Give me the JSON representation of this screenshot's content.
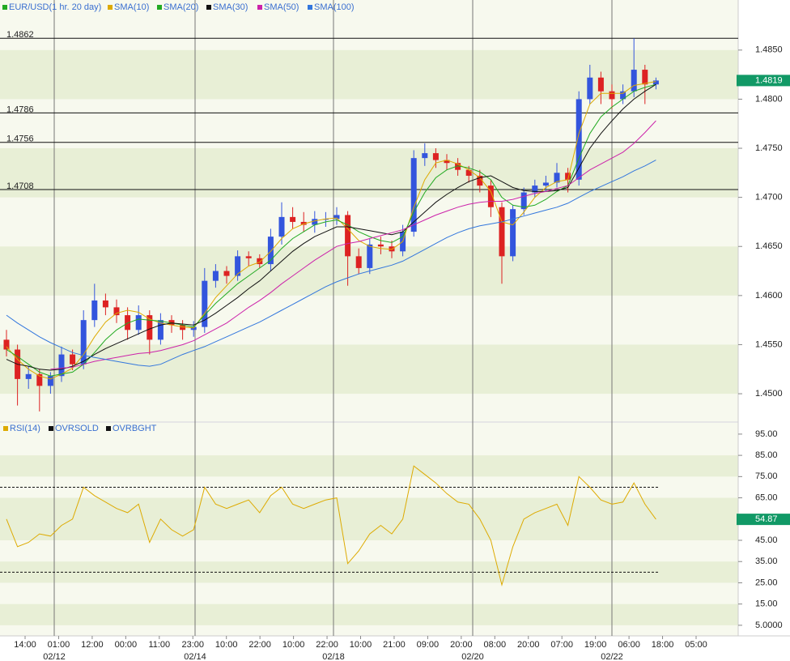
{
  "chart_data": [
    {
      "type": "candlestick",
      "title": "EUR/USD(1 hr. 20 day)",
      "title_color": "#22aa22",
      "up_color": "#3355dd",
      "down_color": "#dd2222",
      "candles": {
        "open": [
          1.4555,
          1.4545,
          1.4515,
          1.452,
          1.4508,
          1.4518,
          1.454,
          1.453,
          1.4575,
          1.4595,
          1.4588,
          1.458,
          1.4565,
          1.458,
          1.4555,
          1.4575,
          1.457,
          1.4565,
          1.4568,
          1.4615,
          1.4625,
          1.462,
          1.464,
          1.4638,
          1.4632,
          1.466,
          1.468,
          1.4675,
          1.4672,
          1.4678,
          1.4678,
          1.4682,
          1.464,
          1.4628,
          1.4652,
          1.465,
          1.4645,
          1.4665,
          1.474,
          1.4745,
          1.4738,
          1.4735,
          1.4728,
          1.4722,
          1.4712,
          1.469,
          1.464,
          1.4688,
          1.4705,
          1.4712,
          1.4715,
          1.4725,
          1.4718,
          1.48,
          1.4822,
          1.4808,
          1.48,
          1.4808,
          1.483,
          1.4815
        ],
        "high": [
          1.4565,
          1.455,
          1.4528,
          1.4525,
          1.4522,
          1.4548,
          1.4545,
          1.4585,
          1.4612,
          1.4602,
          1.4596,
          1.4588,
          1.459,
          1.4585,
          1.4582,
          1.458,
          1.4575,
          1.4574,
          1.4628,
          1.4632,
          1.463,
          1.4646,
          1.4645,
          1.4642,
          1.4668,
          1.4695,
          1.469,
          1.4685,
          1.4686,
          1.4685,
          1.469,
          1.4686,
          1.4648,
          1.4658,
          1.466,
          1.4656,
          1.4672,
          1.4748,
          1.4755,
          1.475,
          1.4744,
          1.474,
          1.4732,
          1.4728,
          1.4718,
          1.4695,
          1.4692,
          1.471,
          1.4718,
          1.4722,
          1.4735,
          1.473,
          1.4808,
          1.4835,
          1.4828,
          1.4815,
          1.4815,
          1.4862,
          1.4835,
          1.4822
        ],
        "low": [
          1.4538,
          1.4488,
          1.4505,
          1.4482,
          1.45,
          1.4512,
          1.4524,
          1.4525,
          1.4568,
          1.458,
          1.4572,
          1.4555,
          1.456,
          1.454,
          1.455,
          1.4562,
          1.4555,
          1.4558,
          1.4562,
          1.4608,
          1.4612,
          1.4615,
          1.463,
          1.4628,
          1.4625,
          1.4652,
          1.4668,
          1.4665,
          1.4664,
          1.467,
          1.4672,
          1.461,
          1.4622,
          1.4622,
          1.4642,
          1.4638,
          1.464,
          1.466,
          1.4732,
          1.473,
          1.4728,
          1.4722,
          1.4715,
          1.4705,
          1.468,
          1.4612,
          1.4635,
          1.4682,
          1.47,
          1.4706,
          1.471,
          1.4705,
          1.4712,
          1.4795,
          1.4795,
          1.479,
          1.4795,
          1.4802,
          1.4795,
          1.481
        ],
        "close": [
          1.4545,
          1.4515,
          1.452,
          1.4508,
          1.4518,
          1.454,
          1.453,
          1.4575,
          1.4595,
          1.4588,
          1.458,
          1.4565,
          1.458,
          1.4555,
          1.4575,
          1.457,
          1.4565,
          1.4568,
          1.4615,
          1.4625,
          1.462,
          1.464,
          1.4638,
          1.4632,
          1.466,
          1.468,
          1.4675,
          1.4672,
          1.4678,
          1.4678,
          1.4682,
          1.464,
          1.4628,
          1.4652,
          1.465,
          1.4645,
          1.4665,
          1.474,
          1.4745,
          1.4738,
          1.4735,
          1.4728,
          1.4722,
          1.4712,
          1.469,
          1.464,
          1.4688,
          1.4705,
          1.4712,
          1.4715,
          1.4725,
          1.4718,
          1.48,
          1.4822,
          1.4808,
          1.48,
          1.4808,
          1.483,
          1.4815,
          1.4819
        ]
      },
      "series": [
        {
          "name": "SMA(10)",
          "color": "#ddaa00",
          "values": [
            1.4548,
            1.4535,
            1.4525,
            1.4518,
            1.4515,
            1.452,
            1.4526,
            1.454,
            1.4558,
            1.4573,
            1.4582,
            1.4585,
            1.4583,
            1.4576,
            1.4572,
            1.457,
            1.4568,
            1.4567,
            1.4582,
            1.4598,
            1.461,
            1.4622,
            1.463,
            1.4634,
            1.4645,
            1.4658,
            1.4668,
            1.4673,
            1.4676,
            1.4678,
            1.4679,
            1.4668,
            1.4656,
            1.465,
            1.4648,
            1.4647,
            1.4655,
            1.469,
            1.4718,
            1.4735,
            1.4738,
            1.4734,
            1.4728,
            1.472,
            1.4706,
            1.4675,
            1.4672,
            1.4685,
            1.47,
            1.471,
            1.4716,
            1.4718,
            1.4765,
            1.4795,
            1.4806,
            1.4806,
            1.4806,
            1.4814,
            1.4816,
            1.4818
          ]
        },
        {
          "name": "SMA(20)",
          "color": "#22aa22",
          "values": [
            1.4545,
            1.4538,
            1.453,
            1.4522,
            1.4518,
            1.452,
            1.4522,
            1.453,
            1.4542,
            1.4555,
            1.4565,
            1.4572,
            1.4576,
            1.4575,
            1.4574,
            1.4572,
            1.457,
            1.4568,
            1.458,
            1.4592,
            1.4602,
            1.4612,
            1.462,
            1.4628,
            1.4636,
            1.4648,
            1.4658,
            1.4665,
            1.4672,
            1.4675,
            1.4677,
            1.4672,
            1.4665,
            1.466,
            1.4656,
            1.4654,
            1.466,
            1.4685,
            1.4705,
            1.472,
            1.4728,
            1.4732,
            1.473,
            1.4726,
            1.4718,
            1.47,
            1.4692,
            1.469,
            1.4692,
            1.4698,
            1.4706,
            1.4712,
            1.474,
            1.4765,
            1.4782,
            1.4792,
            1.48,
            1.4808,
            1.4812,
            1.4815
          ]
        },
        {
          "name": "SMA(30)",
          "color": "#111111",
          "values": [
            1.4535,
            1.453,
            1.4528,
            1.4525,
            1.4524,
            1.4525,
            1.4528,
            1.4533,
            1.454,
            1.4546,
            1.4551,
            1.4556,
            1.4561,
            1.4566,
            1.457,
            1.4572,
            1.4571,
            1.457,
            1.4575,
            1.4582,
            1.459,
            1.4598,
            1.4607,
            1.4615,
            1.4625,
            1.4635,
            1.4645,
            1.4653,
            1.466,
            1.4665,
            1.467,
            1.467,
            1.4668,
            1.4666,
            1.4664,
            1.4662,
            1.4665,
            1.4675,
            1.4685,
            1.4695,
            1.4703,
            1.471,
            1.4716,
            1.472,
            1.4722,
            1.4716,
            1.471,
            1.4707,
            1.4706,
            1.4706,
            1.4707,
            1.471,
            1.473,
            1.475,
            1.4765,
            1.4778,
            1.479,
            1.48,
            1.4808,
            1.4815
          ]
        },
        {
          "name": "SMA(50)",
          "color": "#cc22aa",
          "values": [
            null,
            null,
            null,
            null,
            1.4525,
            1.4526,
            1.4527,
            1.453,
            1.4533,
            1.4535,
            1.4537,
            1.4539,
            1.4541,
            1.4542,
            1.4544,
            1.4547,
            1.455,
            1.4554,
            1.456,
            1.4566,
            1.4572,
            1.458,
            1.4588,
            1.4595,
            1.4603,
            1.4612,
            1.462,
            1.4628,
            1.4636,
            1.4643,
            1.465,
            1.4653,
            1.4655,
            1.4658,
            1.4661,
            1.4664,
            1.4667,
            1.4672,
            1.4677,
            1.4682,
            1.4686,
            1.469,
            1.4693,
            1.4695,
            1.4696,
            1.4696,
            1.4698,
            1.4701,
            1.4704,
            1.4706,
            1.4709,
            1.4712,
            1.472,
            1.4728,
            1.4734,
            1.474,
            1.4746,
            1.4755,
            1.4766,
            1.4778
          ]
        },
        {
          "name": "SMA(100)",
          "color": "#3377dd",
          "values": [
            1.458,
            1.4572,
            1.4565,
            1.4558,
            1.4552,
            1.4547,
            1.4542,
            1.4539,
            1.4537,
            1.4535,
            1.4533,
            1.4531,
            1.4529,
            1.4528,
            1.453,
            1.4535,
            1.454,
            1.4544,
            1.4548,
            1.4553,
            1.4558,
            1.4563,
            1.4568,
            1.4573,
            1.4579,
            1.4585,
            1.4591,
            1.4597,
            1.4603,
            1.4609,
            1.4614,
            1.4618,
            1.4622,
            1.4625,
            1.4628,
            1.4631,
            1.4635,
            1.4641,
            1.4647,
            1.4653,
            1.4659,
            1.4664,
            1.4668,
            1.4671,
            1.4673,
            1.4675,
            1.4678,
            1.4681,
            1.4684,
            1.4687,
            1.469,
            1.4694,
            1.47,
            1.4706,
            1.4711,
            1.4716,
            1.4721,
            1.4727,
            1.4732,
            1.4738
          ]
        }
      ],
      "levels": [
        1.4862,
        1.4786,
        1.4756,
        1.4708
      ],
      "last_value": 1.4819,
      "last_color": "#119966",
      "ylim": [
        1.4472,
        1.4901
      ],
      "yticks": [
        {
          "value": 1.45,
          "label": "1.4500"
        },
        {
          "value": 1.455,
          "label": "1.4550"
        },
        {
          "value": 1.46,
          "label": "1.4600"
        },
        {
          "value": 1.465,
          "label": "1.4650"
        },
        {
          "value": 1.47,
          "label": "1.4700"
        },
        {
          "value": 1.475,
          "label": "1.4750"
        },
        {
          "value": 1.48,
          "label": "1.4800"
        },
        {
          "value": 1.485,
          "label": "1.4850"
        }
      ]
    },
    {
      "type": "line",
      "series": [
        {
          "name": "RSI(14)",
          "color": "#ddaa00",
          "values": [
            55,
            42,
            44,
            48,
            47,
            52,
            55,
            70,
            66,
            63,
            60,
            58,
            62,
            44,
            55,
            50,
            47,
            50,
            70,
            62,
            60,
            62,
            64,
            58,
            66,
            70,
            62,
            60,
            62,
            64,
            65,
            34,
            40,
            48,
            52,
            48,
            55,
            80,
            76,
            72,
            67,
            63,
            62,
            55,
            45,
            24,
            42,
            55,
            58,
            60,
            62,
            52,
            75,
            70,
            64,
            62,
            63,
            72,
            62,
            54.87
          ]
        }
      ],
      "levels": [
        {
          "name": "OVRSOLD",
          "value": 30,
          "color": "#111111"
        },
        {
          "name": "OVRBGHT",
          "value": 70,
          "color": "#111111"
        }
      ],
      "last_value": 54.87,
      "last_color": "#119966",
      "ylim": [
        0,
        100.3
      ],
      "yticks": [
        {
          "value": 5,
          "label": "5.0000"
        },
        {
          "value": 15,
          "label": "15.00"
        },
        {
          "value": 25,
          "label": "25.00"
        },
        {
          "value": 35,
          "label": "35.00"
        },
        {
          "value": 45,
          "label": "45.00"
        },
        {
          "value": 65,
          "label": "65.00"
        },
        {
          "value": 75,
          "label": "75.00"
        },
        {
          "value": 85,
          "label": "85.00"
        },
        {
          "value": 95,
          "label": "95.00"
        }
      ]
    }
  ],
  "x_axis": {
    "ticks": [
      "14:00",
      "01:00",
      "12:00",
      "00:00",
      "11:00",
      "23:00",
      "10:00",
      "22:00",
      "10:00",
      "22:00",
      "10:00",
      "21:00",
      "09:00",
      "20:00",
      "08:00",
      "20:00",
      "07:00",
      "19:00",
      "06:00",
      "18:00",
      "05:00"
    ],
    "dates": [
      "02/12",
      "02/14",
      "02/18",
      "02/20",
      "02/22"
    ]
  }
}
